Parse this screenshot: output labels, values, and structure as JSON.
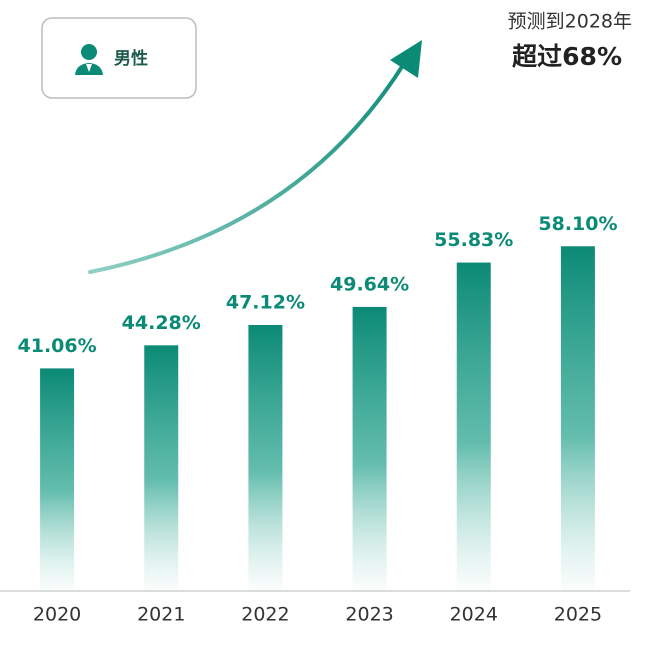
{
  "chart_data": {
    "type": "bar",
    "categories": [
      "2020",
      "2021",
      "2022",
      "2023",
      "2024",
      "2025"
    ],
    "series": [
      {
        "name": "男性",
        "color": "#0b8a76",
        "values": [
          41.06,
          44.28,
          47.12,
          49.64,
          55.83,
          58.1
        ],
        "value_labels": [
          "41.06%",
          "44.28%",
          "47.12%",
          "49.64%",
          "55.83%",
          "58.10%"
        ]
      }
    ],
    "ylim": [
      10,
      70
    ],
    "annotations": [
      "预测到2028年",
      "超过68%"
    ]
  }
}
